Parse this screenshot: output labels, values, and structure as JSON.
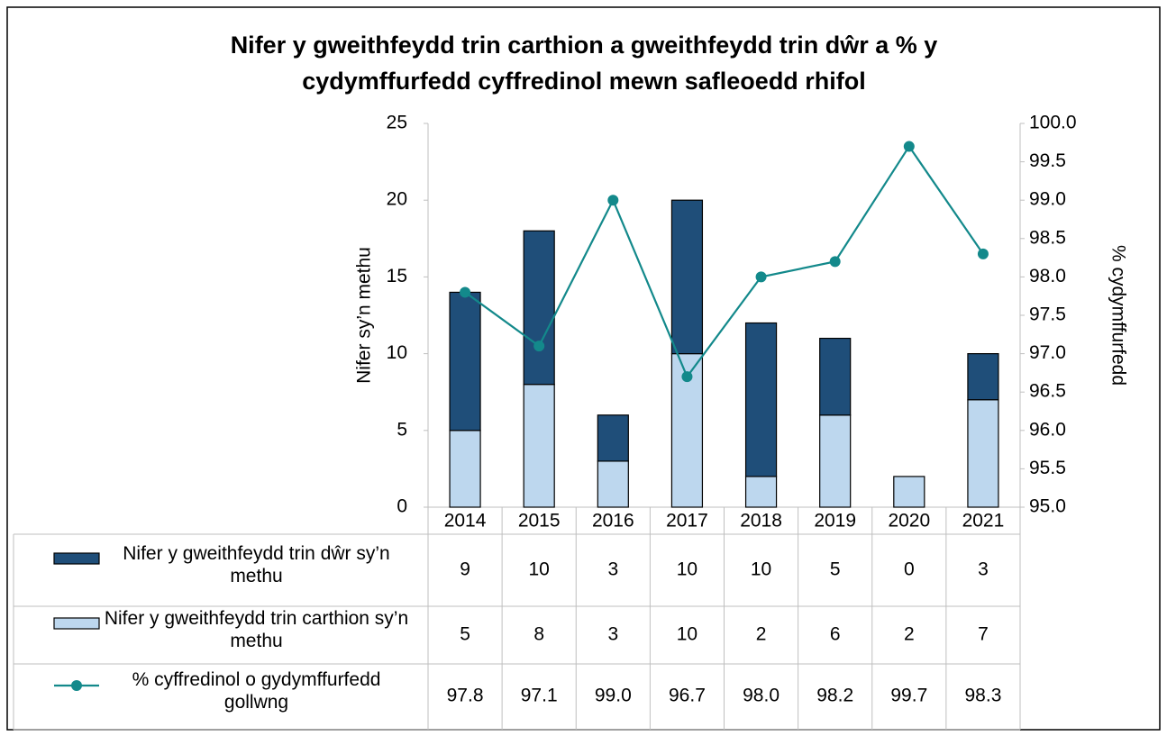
{
  "chart_data": {
    "type": "bar",
    "title": "Nifer y gweithfeydd trin carthion a gweithfeydd trin dŵr a % y cydymffurfedd cyffredinol mewn safleoedd rhifol",
    "y_label": "Nifer sy’n methu",
    "y2_label": "% cydymffurfedd",
    "categories": [
      "2014",
      "2015",
      "2016",
      "2017",
      "2018",
      "2019",
      "2020",
      "2021"
    ],
    "stacked": true,
    "series": [
      {
        "name": "Nifer y gweithfeydd trin dŵr sy’n methu",
        "type": "bar",
        "color": "#1f4e79",
        "values": [
          9,
          10,
          3,
          10,
          10,
          5,
          0,
          3
        ]
      },
      {
        "name": "Nifer y gweithfeydd trin carthion sy’n methu",
        "type": "bar",
        "color": "#bdd7ee",
        "values": [
          5,
          8,
          3,
          10,
          2,
          6,
          2,
          7
        ]
      },
      {
        "name": "% cyffredinol o gydymffurfedd gollwng",
        "type": "line",
        "axis": "y2",
        "color": "#13898b",
        "values": [
          97.8,
          97.1,
          99.0,
          96.7,
          98.0,
          98.2,
          99.7,
          98.3
        ],
        "value_labels": [
          "97.8",
          "97.1",
          "99.0",
          "96.7",
          "98.0",
          "98.2",
          "99.7",
          "98.3"
        ]
      }
    ],
    "ylim": [
      0,
      25
    ],
    "yticks": [
      0,
      5,
      10,
      15,
      20,
      25
    ],
    "y2lim": [
      95,
      100
    ],
    "y2ticks": [
      {
        "value": 95,
        "label": "95.0"
      },
      {
        "value": 95.5,
        "label": "95.5"
      },
      {
        "value": 96,
        "label": "96.0"
      },
      {
        "value": 96.5,
        "label": "96.5"
      },
      {
        "value": 97,
        "label": "97.0"
      },
      {
        "value": 97.5,
        "label": "97.5"
      },
      {
        "value": 98,
        "label": "98.0"
      },
      {
        "value": 98.5,
        "label": "98.5"
      },
      {
        "value": 99,
        "label": "99.0"
      },
      {
        "value": 99.5,
        "label": "99.5"
      },
      {
        "value": 100,
        "label": "100.0"
      }
    ],
    "data_table": true
  }
}
